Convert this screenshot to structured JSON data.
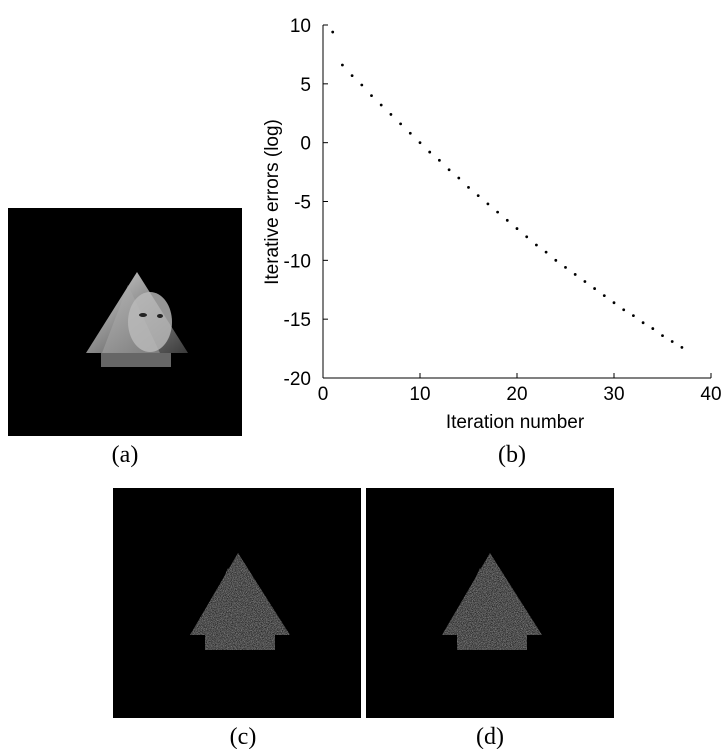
{
  "chart_data": {
    "type": "scatter",
    "xlabel": "Iteration number",
    "ylabel": "Iterative errors (log)",
    "x": [
      1,
      2,
      3,
      4,
      5,
      6,
      7,
      8,
      9,
      10,
      11,
      12,
      13,
      14,
      15,
      16,
      17,
      18,
      19,
      20,
      21,
      22,
      23,
      24,
      25,
      26,
      27,
      28,
      29,
      30,
      31,
      32,
      33,
      34,
      35,
      36,
      37
    ],
    "values": [
      9.4,
      6.6,
      5.7,
      4.9,
      4.0,
      3.2,
      2.4,
      1.6,
      0.8,
      0.0,
      -0.8,
      -1.5,
      -2.3,
      -3.0,
      -3.8,
      -4.5,
      -5.2,
      -5.9,
      -6.6,
      -7.3,
      -8.0,
      -8.7,
      -9.3,
      -10.0,
      -10.6,
      -11.2,
      -11.8,
      -12.4,
      -13.0,
      -13.6,
      -14.2,
      -14.7,
      -15.3,
      -15.8,
      -16.4,
      -16.9,
      -17.4
    ],
    "color": "#000000",
    "xlim": [
      0,
      40
    ],
    "xticks": [
      0,
      10,
      20,
      30,
      40
    ],
    "ylim": [
      -20,
      10
    ],
    "yticks": [
      -20,
      -15,
      -10,
      -5,
      0,
      5,
      10
    ],
    "grid": false
  },
  "captions": [
    "(a)",
    "(b)",
    "(c)",
    "(d)"
  ]
}
